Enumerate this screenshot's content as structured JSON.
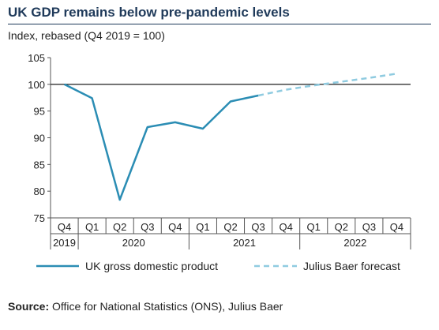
{
  "title": "UK GDP remains below pre-pandemic levels",
  "subtitle": "Index, rebased (Q4 2019 = 100)",
  "source": {
    "label": "Source:",
    "text": " Office for National Statistics (ONS), Julius Baer"
  },
  "colors": {
    "actual": "#2b8db4",
    "forecast": "#8fcbe0",
    "reference": "#333333",
    "text": "#222222",
    "title": "#1f3a5a"
  },
  "chart_data": {
    "type": "line",
    "title": "UK GDP remains below pre-pandemic levels",
    "ylabel": "Index, rebased (Q4 2019 = 100)",
    "ylim": [
      75,
      105
    ],
    "yticks": [
      75,
      80,
      85,
      90,
      95,
      100,
      105
    ],
    "reference_line": 100,
    "quarters": [
      "Q4",
      "Q1",
      "Q2",
      "Q3",
      "Q4",
      "Q1",
      "Q2",
      "Q3",
      "Q4",
      "Q1",
      "Q2",
      "Q3",
      "Q4"
    ],
    "years": [
      {
        "label": "2019",
        "start": 0,
        "end": 0
      },
      {
        "label": "2020",
        "start": 1,
        "end": 4
      },
      {
        "label": "2021",
        "start": 5,
        "end": 8
      },
      {
        "label": "2022",
        "start": 9,
        "end": 12
      }
    ],
    "series": [
      {
        "name": "UK gross domestic product",
        "style": "solid",
        "x": [
          0,
          1,
          2,
          3,
          4,
          5,
          6,
          7
        ],
        "values": [
          100,
          97.4,
          78.4,
          92,
          92.9,
          91.7,
          96.8,
          97.9
        ]
      },
      {
        "name": "Julius Baer forecast",
        "style": "dashed",
        "x": [
          7,
          8,
          9,
          10,
          11,
          12
        ],
        "values": [
          97.9,
          99,
          99.8,
          100.5,
          101.2,
          102
        ]
      }
    ],
    "grid": false,
    "legend": "bottom"
  }
}
